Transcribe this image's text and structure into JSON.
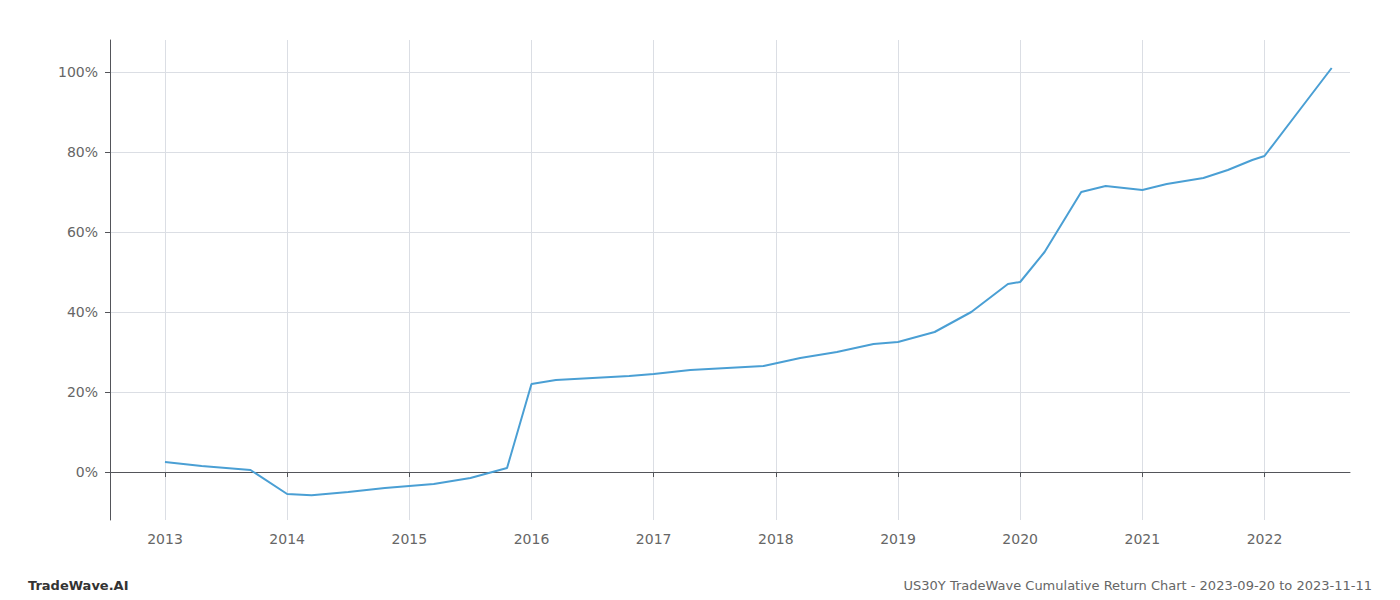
{
  "chart_data": {
    "type": "line",
    "annotations": [
      "TradeWave.AI",
      "US30Y TradeWave Cumulative Return Chart - 2023-09-20 to 2023-11-11"
    ],
    "x": [
      2013.0,
      2013.3,
      2013.7,
      2014.0,
      2014.2,
      2014.5,
      2014.8,
      2015.0,
      2015.2,
      2015.5,
      2015.8,
      2016.0,
      2016.2,
      2016.5,
      2016.8,
      2017.0,
      2017.3,
      2017.6,
      2017.9,
      2018.2,
      2018.5,
      2018.8,
      2019.0,
      2019.3,
      2019.6,
      2019.9,
      2020.0,
      2020.2,
      2020.5,
      2020.7,
      2021.0,
      2021.2,
      2021.5,
      2021.7,
      2021.9,
      2022.0,
      2022.3,
      2022.55
    ],
    "values": [
      2.5,
      1.5,
      0.5,
      -5.5,
      -5.8,
      -5.0,
      -4.0,
      -3.5,
      -3.0,
      -1.5,
      1.0,
      22.0,
      23.0,
      23.5,
      24.0,
      24.5,
      25.5,
      26.0,
      26.5,
      28.5,
      30.0,
      32.0,
      32.5,
      35.0,
      40.0,
      47.0,
      47.5,
      55.0,
      70.0,
      71.5,
      70.5,
      72.0,
      73.5,
      75.5,
      78.0,
      79.0,
      91.0,
      101.0
    ],
    "color": "#4a9fd4",
    "xlim": [
      2012.55,
      2022.7
    ],
    "xticks": [
      2013,
      2014,
      2015,
      2016,
      2017,
      2018,
      2019,
      2020,
      2021,
      2022
    ],
    "ylim": [
      -12,
      108
    ],
    "yticks": [
      {
        "value": 0,
        "label": "0%"
      },
      {
        "value": 20,
        "label": "20%"
      },
      {
        "value": 40,
        "label": "40%"
      },
      {
        "value": 60,
        "label": "60%"
      },
      {
        "value": 80,
        "label": "80%"
      },
      {
        "value": 100,
        "label": "100%"
      }
    ],
    "grid": true
  }
}
